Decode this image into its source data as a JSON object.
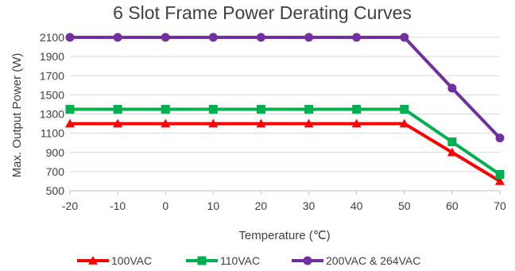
{
  "chart_data": {
    "type": "line",
    "title": "6 Slot Frame Power Derating Curves",
    "xlabel": "Temperature (℃)",
    "ylabel": "Max. Output Power (W)",
    "x": [
      -20,
      -10,
      0,
      10,
      20,
      30,
      40,
      50,
      60,
      70
    ],
    "xlim": [
      -20,
      70
    ],
    "ylim": [
      500,
      2100
    ],
    "yticks": [
      500,
      700,
      900,
      1100,
      1300,
      1500,
      1700,
      1900,
      2100
    ],
    "grid": true,
    "legend_position": "bottom",
    "series": [
      {
        "name": "100VAC",
        "color": "#ff0000",
        "marker": "triangle",
        "values": [
          1200,
          1200,
          1200,
          1200,
          1200,
          1200,
          1200,
          1200,
          900,
          600
        ]
      },
      {
        "name": "110VAC",
        "color": "#00b050",
        "marker": "square",
        "values": [
          1350,
          1350,
          1350,
          1350,
          1350,
          1350,
          1350,
          1350,
          1010,
          670
        ]
      },
      {
        "name": "200VAC & 264VAC",
        "color": "#7030a0",
        "marker": "circle",
        "values": [
          2100,
          2100,
          2100,
          2100,
          2100,
          2100,
          2100,
          2100,
          1570,
          1050
        ]
      }
    ]
  }
}
